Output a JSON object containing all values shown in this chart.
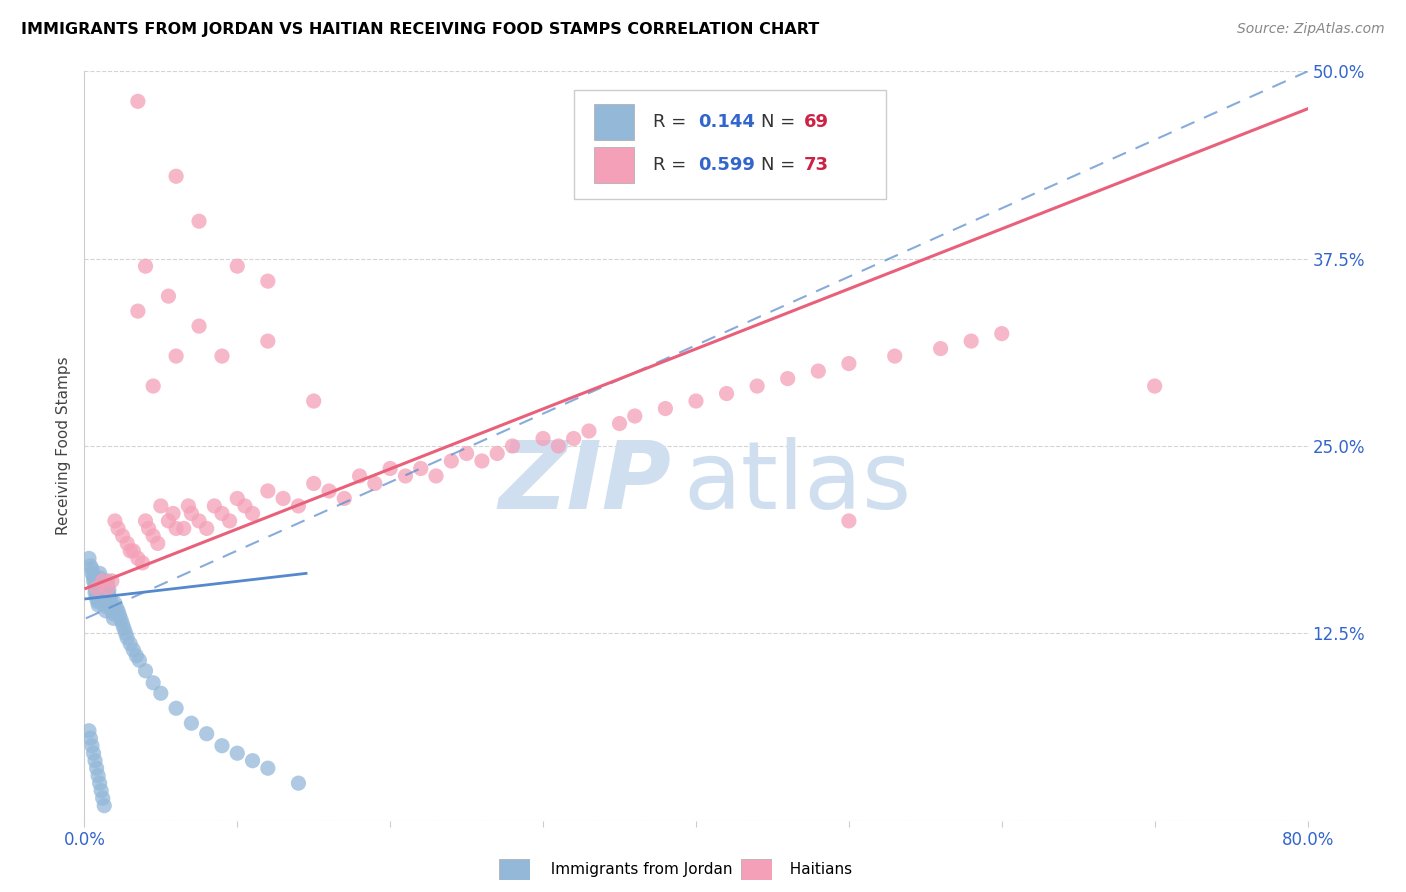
{
  "title": "IMMIGRANTS FROM JORDAN VS HAITIAN RECEIVING FOOD STAMPS CORRELATION CHART",
  "source": "Source: ZipAtlas.com",
  "ylabel": "Receiving Food Stamps",
  "xlim": [
    0.0,
    0.8
  ],
  "ylim": [
    0.0,
    0.5
  ],
  "xtick_positions": [
    0.0,
    0.1,
    0.2,
    0.3,
    0.4,
    0.5,
    0.6,
    0.7,
    0.8
  ],
  "xticklabels": [
    "0.0%",
    "",
    "",
    "",
    "",
    "",
    "",
    "",
    "80.0%"
  ],
  "ytick_positions": [
    0.0,
    0.125,
    0.25,
    0.375,
    0.5
  ],
  "yticklabels_right": [
    "",
    "12.5%",
    "25.0%",
    "37.5%",
    "50.0%"
  ],
  "jordan_R": 0.144,
  "jordan_N": 69,
  "haitian_R": 0.599,
  "haitian_N": 73,
  "jordan_scatter_color": "#93b8d8",
  "haitian_scatter_color": "#f4a0b8",
  "jordan_line_color": "#5588cc",
  "haitian_line_color": "#e8607a",
  "tick_label_color": "#3366cc",
  "legend_R_color": "#3366cc",
  "legend_N_color": "#cc2244",
  "watermark_color": "#d0dff0",
  "jordan_x": [
    0.003,
    0.004,
    0.005,
    0.005,
    0.006,
    0.006,
    0.007,
    0.007,
    0.007,
    0.008,
    0.008,
    0.009,
    0.009,
    0.01,
    0.01,
    0.01,
    0.011,
    0.011,
    0.012,
    0.012,
    0.013,
    0.013,
    0.014,
    0.014,
    0.015,
    0.015,
    0.016,
    0.016,
    0.017,
    0.017,
    0.018,
    0.018,
    0.019,
    0.019,
    0.02,
    0.021,
    0.022,
    0.023,
    0.024,
    0.025,
    0.026,
    0.027,
    0.028,
    0.03,
    0.032,
    0.034,
    0.036,
    0.04,
    0.045,
    0.05,
    0.06,
    0.07,
    0.08,
    0.09,
    0.1,
    0.11,
    0.12,
    0.14,
    0.003,
    0.004,
    0.005,
    0.006,
    0.007,
    0.008,
    0.009,
    0.01,
    0.011,
    0.012,
    0.013
  ],
  "jordan_y": [
    0.175,
    0.17,
    0.168,
    0.165,
    0.163,
    0.16,
    0.158,
    0.155,
    0.152,
    0.15,
    0.148,
    0.146,
    0.144,
    0.165,
    0.162,
    0.158,
    0.155,
    0.152,
    0.15,
    0.148,
    0.147,
    0.145,
    0.143,
    0.14,
    0.16,
    0.157,
    0.154,
    0.151,
    0.148,
    0.145,
    0.143,
    0.14,
    0.138,
    0.135,
    0.145,
    0.142,
    0.14,
    0.137,
    0.134,
    0.131,
    0.128,
    0.125,
    0.122,
    0.118,
    0.114,
    0.11,
    0.107,
    0.1,
    0.092,
    0.085,
    0.075,
    0.065,
    0.058,
    0.05,
    0.045,
    0.04,
    0.035,
    0.025,
    0.06,
    0.055,
    0.05,
    0.045,
    0.04,
    0.035,
    0.03,
    0.025,
    0.02,
    0.015,
    0.01
  ],
  "haitian_x": [
    0.008,
    0.012,
    0.015,
    0.018,
    0.02,
    0.022,
    0.025,
    0.028,
    0.03,
    0.032,
    0.035,
    0.038,
    0.04,
    0.042,
    0.045,
    0.048,
    0.05,
    0.055,
    0.058,
    0.06,
    0.065,
    0.068,
    0.07,
    0.075,
    0.08,
    0.085,
    0.09,
    0.095,
    0.1,
    0.105,
    0.11,
    0.12,
    0.13,
    0.14,
    0.15,
    0.16,
    0.17,
    0.18,
    0.19,
    0.2,
    0.21,
    0.22,
    0.23,
    0.24,
    0.25,
    0.26,
    0.27,
    0.28,
    0.3,
    0.31,
    0.32,
    0.33,
    0.35,
    0.36,
    0.38,
    0.4,
    0.42,
    0.44,
    0.46,
    0.48,
    0.5,
    0.53,
    0.56,
    0.58,
    0.6,
    0.04,
    0.055,
    0.075,
    0.09,
    0.12,
    0.15,
    0.5,
    0.7
  ],
  "haitian_y": [
    0.155,
    0.16,
    0.155,
    0.16,
    0.2,
    0.195,
    0.19,
    0.185,
    0.18,
    0.18,
    0.175,
    0.172,
    0.2,
    0.195,
    0.19,
    0.185,
    0.21,
    0.2,
    0.205,
    0.195,
    0.195,
    0.21,
    0.205,
    0.2,
    0.195,
    0.21,
    0.205,
    0.2,
    0.215,
    0.21,
    0.205,
    0.22,
    0.215,
    0.21,
    0.225,
    0.22,
    0.215,
    0.23,
    0.225,
    0.235,
    0.23,
    0.235,
    0.23,
    0.24,
    0.245,
    0.24,
    0.245,
    0.25,
    0.255,
    0.25,
    0.255,
    0.26,
    0.265,
    0.27,
    0.275,
    0.28,
    0.285,
    0.29,
    0.295,
    0.3,
    0.305,
    0.31,
    0.315,
    0.32,
    0.325,
    0.37,
    0.35,
    0.33,
    0.31,
    0.36,
    0.28,
    0.2,
    0.29
  ],
  "haitian_outlier_x": [
    0.035,
    0.06,
    0.075,
    0.1,
    0.035,
    0.12,
    0.045,
    0.06
  ],
  "haitian_outlier_y": [
    0.48,
    0.43,
    0.4,
    0.37,
    0.34,
    0.32,
    0.29,
    0.31
  ]
}
